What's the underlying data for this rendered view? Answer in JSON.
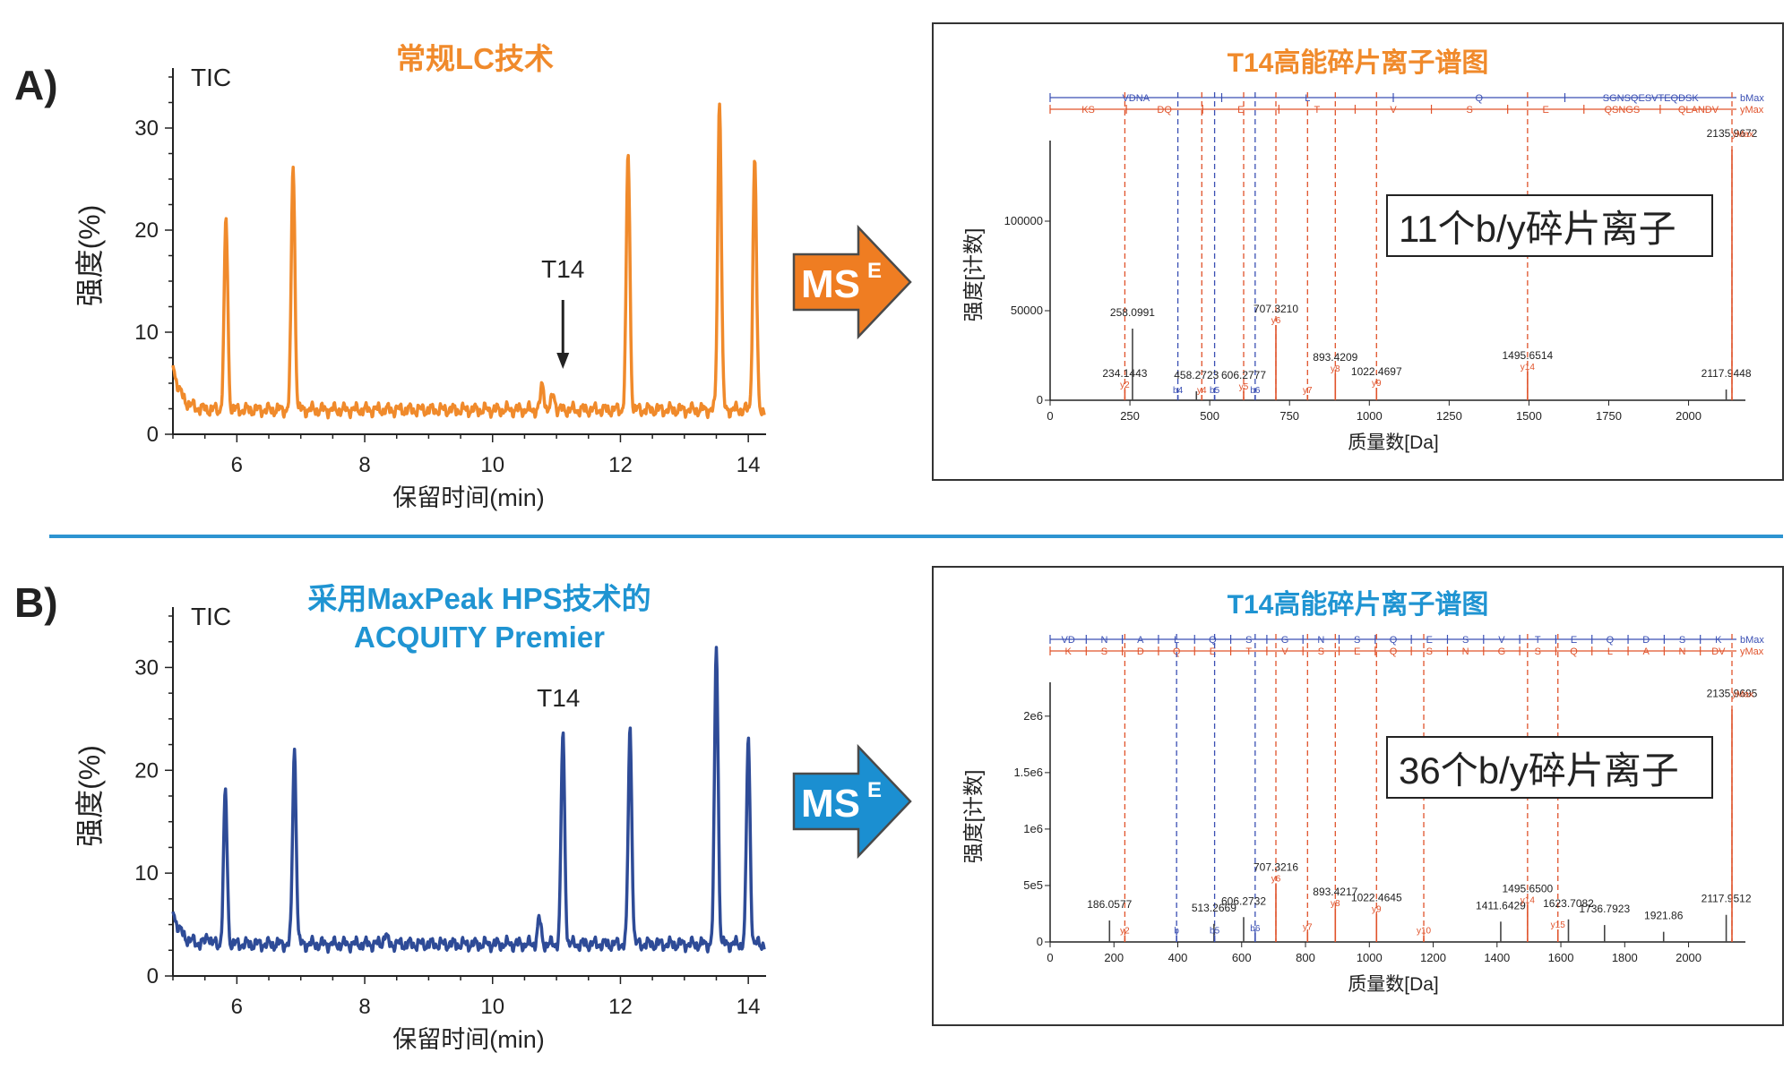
{
  "colors": {
    "orange": "#f08a2b",
    "navy": "#2e4b97",
    "blue_title": "#1f94d2",
    "divider": "#2d94d1",
    "arrow_orange": "#ef7d22",
    "arrow_blue": "#1b8fd1",
    "b_ion": "#3a4fb3",
    "y_ion": "#e0532b",
    "green": "#6cbf5f"
  },
  "panel_a": {
    "letter": "A)",
    "title": "常规LC技术",
    "arrow_label": "MS",
    "arrow_sup": "E",
    "spectrum": {
      "title": "T14高能碎片离子谱图",
      "callout": "11个b/y碎片离子",
      "xlabel": "质量数[Da]",
      "ylabel": "强度[计数]"
    }
  },
  "panel_b": {
    "letter": "B)",
    "title_line1": "采用MaxPeak HPS技术的",
    "title_line2": "ACQUITY Premier",
    "arrow_label": "MS",
    "arrow_sup": "E",
    "spectrum": {
      "title": "T14高能碎片离子谱图",
      "callout": "36个b/y碎片离子",
      "xlabel": "质量数[Da]",
      "ylabel": "强度[计数]"
    }
  },
  "chart_data": [
    {
      "type": "line",
      "label": "A chromatogram",
      "title": "常规LC技术",
      "series_label": "TIC",
      "annotation": "T14",
      "annotation_x": 11.1,
      "xlabel": "保留时间(min)",
      "ylabel": "强度(%)",
      "xlim": [
        5,
        14.25
      ],
      "ylim": [
        0,
        35
      ],
      "xticks": [
        6,
        8,
        10,
        12,
        14
      ],
      "yticks": [
        0,
        10,
        20,
        30
      ],
      "baseline": 2.4,
      "start_value": 7,
      "peaks": [
        {
          "x": 5.83,
          "y": 21
        },
        {
          "x": 6.88,
          "y": 26.5
        },
        {
          "x": 10.78,
          "y": 4.8
        },
        {
          "x": 10.95,
          "y": 3.9
        },
        {
          "x": 12.12,
          "y": 27.5
        },
        {
          "x": 13.55,
          "y": 32.8
        },
        {
          "x": 14.1,
          "y": 27
        }
      ]
    },
    {
      "type": "line",
      "label": "B chromatogram",
      "title": "采用MaxPeak HPS技术的 ACQUITY Premier",
      "series_label": "TIC",
      "annotation": "T14",
      "xlabel": "保留时间(min)",
      "ylabel": "强度(%)",
      "xlim": [
        5,
        14.25
      ],
      "ylim": [
        0,
        35
      ],
      "xticks": [
        6,
        8,
        10,
        12,
        14
      ],
      "yticks": [
        0,
        10,
        20,
        30
      ],
      "baseline": 3.1,
      "start_value": 6.5,
      "peaks": [
        {
          "x": 5.55,
          "y": 4
        },
        {
          "x": 5.82,
          "y": 17.8
        },
        {
          "x": 6.9,
          "y": 22
        },
        {
          "x": 8.32,
          "y": 4
        },
        {
          "x": 10.73,
          "y": 5.5
        },
        {
          "x": 11.1,
          "y": 23.5
        },
        {
          "x": 12.15,
          "y": 24
        },
        {
          "x": 13.5,
          "y": 32
        },
        {
          "x": 14.0,
          "y": 23
        }
      ]
    },
    {
      "type": "bar",
      "label": "A spectrum",
      "title": "T14高能碎片离子谱图",
      "xlabel": "质量数[Da]",
      "ylabel": "强度[计数]",
      "xlim": [
        0,
        2150
      ],
      "ylim": [
        0,
        145000
      ],
      "xticks": [
        0,
        250,
        500,
        750,
        1000,
        1250,
        1500,
        1750,
        2000
      ],
      "yticks": [
        {
          "v": 0,
          "t": "0"
        },
        {
          "v": 50000,
          "t": "50000"
        },
        {
          "v": 100000,
          "t": "100000"
        }
      ],
      "peaks": [
        {
          "mz": 234.1443,
          "i": 6000,
          "ion": "y2",
          "c": "y",
          "label": "234.1443"
        },
        {
          "mz": 258.0991,
          "i": 40000,
          "c": "x",
          "label": "258.0991"
        },
        {
          "mz": 400.2,
          "i": 3000,
          "ion": "b4",
          "c": "b"
        },
        {
          "mz": 458.2723,
          "i": 5000,
          "c": "x",
          "label": "458.2723"
        },
        {
          "mz": 475.2,
          "i": 3000,
          "ion": "y4",
          "c": "y"
        },
        {
          "mz": 515.3,
          "i": 3000,
          "ion": "b5",
          "c": "b"
        },
        {
          "mz": 606.2777,
          "i": 5000,
          "ion": "y5",
          "c": "y",
          "label": "606.2777"
        },
        {
          "mz": 642.3,
          "i": 3000,
          "ion": "b6",
          "c": "b"
        },
        {
          "mz": 707.321,
          "i": 42000,
          "ion": "y6",
          "c": "y",
          "label": "707.3210"
        },
        {
          "mz": 806.4,
          "i": 3000,
          "ion": "y7",
          "c": "y"
        },
        {
          "mz": 893.4209,
          "i": 15000,
          "ion": "y8",
          "c": "y",
          "label": "893.4209"
        },
        {
          "mz": 1022.4697,
          "i": 7000,
          "ion": "y9",
          "c": "y",
          "label": "1022.4697"
        },
        {
          "mz": 1495.6514,
          "i": 16000,
          "ion": "y14",
          "c": "y",
          "label": "1495.6514"
        },
        {
          "mz": 2117.9448,
          "i": 6000,
          "c": "x",
          "label": "2117.9448"
        },
        {
          "mz": 2135.9672,
          "i": 140000,
          "ion": "yMax",
          "c": "y",
          "label": "2135.9672"
        }
      ],
      "b_track": [
        "VDNA",
        "L",
        "Q",
        "SGNSQESVTEQDSK",
        "bMax"
      ],
      "y_track": [
        "KS",
        "DQ",
        "E",
        "T",
        "V",
        "S",
        "E",
        "QSNGS",
        "QLANDV",
        "yMax"
      ]
    },
    {
      "type": "bar",
      "label": "B spectrum",
      "title": "T14高能碎片离子谱图",
      "xlabel": "质量数[Da]",
      "ylabel": "强度[计数]",
      "xlim": [
        0,
        2150
      ],
      "ylim": [
        0,
        2300000
      ],
      "xticks": [
        0,
        200,
        400,
        600,
        800,
        1000,
        1200,
        1400,
        1600,
        1800,
        2000
      ],
      "yticks": [
        {
          "v": 0,
          "t": "0"
        },
        {
          "v": 500000,
          "t": "5e5"
        },
        {
          "v": 1000000,
          "t": "1e6"
        },
        {
          "v": 1500000,
          "t": "1.5e6"
        },
        {
          "v": 2000000,
          "t": "2e6"
        }
      ],
      "peaks": [
        {
          "mz": 186.0577,
          "i": 190000,
          "c": "x",
          "label": "186.0577"
        },
        {
          "mz": 234.1,
          "i": 60000,
          "ion": "y2",
          "c": "y"
        },
        {
          "mz": 396.2,
          "i": 60000,
          "ion": "b",
          "c": "b"
        },
        {
          "mz": 513.2669,
          "i": 160000,
          "c": "x",
          "label": "513.2669"
        },
        {
          "mz": 515.3,
          "i": 60000,
          "ion": "b5",
          "c": "b"
        },
        {
          "mz": 606.2732,
          "i": 220000,
          "c": "x",
          "label": "606.2732"
        },
        {
          "mz": 642.3,
          "i": 80000,
          "ion": "b6",
          "c": "b"
        },
        {
          "mz": 707.3216,
          "i": 520000,
          "ion": "y6",
          "c": "y",
          "label": "707.3216"
        },
        {
          "mz": 806.4,
          "i": 90000,
          "ion": "y7",
          "c": "y"
        },
        {
          "mz": 893.4217,
          "i": 300000,
          "ion": "y8",
          "c": "y",
          "label": "893.4217"
        },
        {
          "mz": 1022.4645,
          "i": 250000,
          "ion": "y9",
          "c": "y",
          "label": "1022.4645"
        },
        {
          "mz": 1170.5,
          "i": 60000,
          "ion": "y10",
          "c": "y"
        },
        {
          "mz": 1411.6429,
          "i": 180000,
          "c": "x",
          "label": "1411.6429"
        },
        {
          "mz": 1495.65,
          "i": 330000,
          "ion": "y14",
          "c": "y",
          "label": "1495.6500"
        },
        {
          "mz": 1590.7,
          "i": 110000,
          "ion": "y15",
          "c": "y"
        },
        {
          "mz": 1623.7082,
          "i": 200000,
          "c": "x",
          "label": "1623.7082"
        },
        {
          "mz": 1736.7923,
          "i": 150000,
          "c": "x",
          "label": "1736.7923"
        },
        {
          "mz": 1921.86,
          "i": 90000,
          "c": "x",
          "label": "1921.86"
        },
        {
          "mz": 2117.9512,
          "i": 240000,
          "c": "x",
          "label": "2117.9512"
        },
        {
          "mz": 2135.9695,
          "i": 2060000,
          "ion": "yMax",
          "c": "y",
          "label": "2135.9695"
        }
      ],
      "b_track": [
        "VD",
        "N",
        "A",
        "L",
        "Q",
        "S",
        "G",
        "N",
        "S",
        "Q",
        "E",
        "S",
        "V",
        "T",
        "E",
        "Q",
        "D",
        "S",
        "K",
        "bMax"
      ],
      "y_track": [
        "K",
        "S",
        "D",
        "Q",
        "E",
        "T",
        "V",
        "S",
        "E",
        "Q",
        "S",
        "N",
        "G",
        "S",
        "Q",
        "L",
        "A",
        "N",
        "DV",
        "yMax"
      ]
    }
  ]
}
